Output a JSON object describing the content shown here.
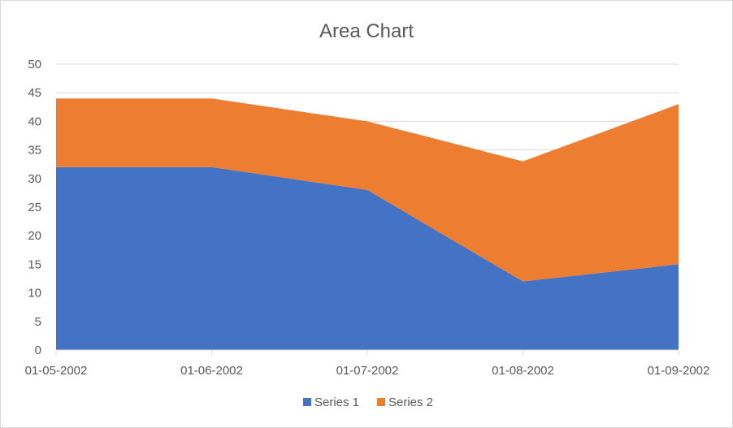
{
  "chart_data": {
    "type": "area",
    "title": "Area Chart",
    "xlabel": "",
    "ylabel": "",
    "stacked": true,
    "categories": [
      "01-05-2002",
      "01-06-2002",
      "01-07-2002",
      "01-08-2002",
      "01-09-2002"
    ],
    "series": [
      {
        "name": "Series 1",
        "values": [
          32,
          32,
          28,
          12,
          15
        ],
        "color": "#4472C4"
      },
      {
        "name": "Series 2",
        "values": [
          12,
          12,
          12,
          21,
          28
        ],
        "color": "#ED7D31"
      }
    ],
    "ylim": [
      0,
      50
    ],
    "yticks": [
      "0",
      "5",
      "10",
      "15",
      "20",
      "25",
      "30",
      "35",
      "40",
      "45",
      "50"
    ],
    "grid": true,
    "legend_position": "bottom"
  }
}
